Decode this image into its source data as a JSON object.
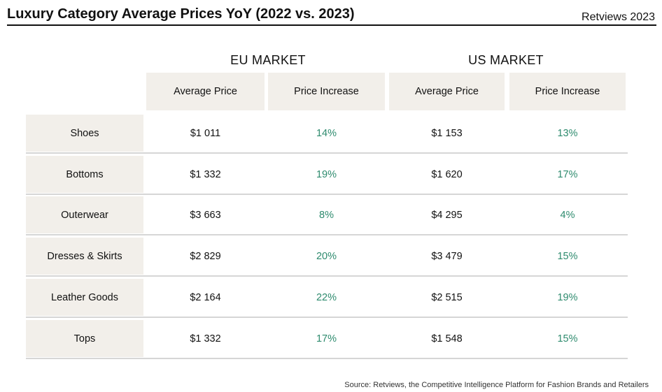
{
  "header": {
    "title": "Luxury Category Average Prices YoY (2022 vs. 2023)",
    "brand": "Retviews 2023"
  },
  "markets": [
    "EU MARKET",
    "US MARKET"
  ],
  "columns": [
    "Average Price",
    "Price Increase",
    "Average Price",
    "Price Increase"
  ],
  "rows": [
    {
      "label": "Shoes",
      "values": [
        "$1 011",
        "14%",
        "$1 153",
        "13%"
      ]
    },
    {
      "label": "Bottoms",
      "values": [
        "$1 332",
        "19%",
        "$1 620",
        "17%"
      ]
    },
    {
      "label": "Outerwear",
      "values": [
        "$3 663",
        "8%",
        "$4 295",
        "4%"
      ]
    },
    {
      "label": "Dresses & Skirts",
      "values": [
        "$2 829",
        "20%",
        "$3 479",
        "15%"
      ]
    },
    {
      "label": "Leather Goods",
      "values": [
        "$2 164",
        "22%",
        "$2 515",
        "19%"
      ]
    },
    {
      "label": "Tops",
      "values": [
        "$1 332",
        "17%",
        "$1 548",
        "15%"
      ]
    }
  ],
  "source": "Source: Retviews, the Competitive Intelligence Platform for Fashion Brands and Retailers",
  "colors": {
    "header_fill": "#f2efea",
    "increase_text": "#2e8b6e",
    "rule": "#d6d6d6"
  },
  "chart_data": {
    "type": "table",
    "title": "Luxury Category Average Prices YoY (2022 vs. 2023)",
    "categories": [
      "Shoes",
      "Bottoms",
      "Outerwear",
      "Dresses & Skirts",
      "Leather Goods",
      "Tops"
    ],
    "series": [
      {
        "name": "EU MARKET Average Price",
        "values": [
          1011,
          1332,
          3663,
          2829,
          2164,
          1332
        ]
      },
      {
        "name": "EU MARKET Price Increase (%)",
        "values": [
          14,
          19,
          8,
          20,
          22,
          17
        ]
      },
      {
        "name": "US MARKET Average Price",
        "values": [
          1153,
          1620,
          4295,
          3479,
          2515,
          1548
        ]
      },
      {
        "name": "US MARKET Price Increase (%)",
        "values": [
          13,
          17,
          4,
          15,
          19,
          15
        ]
      }
    ]
  }
}
